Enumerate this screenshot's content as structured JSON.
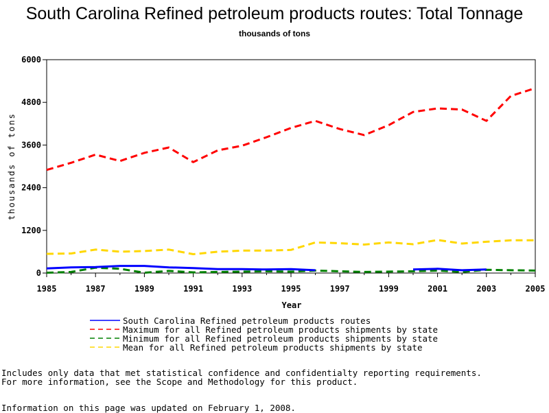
{
  "page": {
    "title": "South Carolina Refined petroleum products routes: Total Tonnage",
    "subtitle": "thousands of tons"
  },
  "notes": {
    "line1": "Includes only data that met statistical confidence and confidentialty reporting requirements.",
    "line2": "For more information, see the Scope and Methodology for this product.",
    "updated": "Information on this page was updated on February 1, 2008."
  },
  "chart_data": {
    "type": "line",
    "title": "South Carolina Refined petroleum products routes: Total Tonnage",
    "subtitle": "thousands of tons",
    "xlabel": "Year",
    "ylabel": "thousands of tons",
    "xlim": [
      1985,
      2005
    ],
    "ylim": [
      0,
      6000
    ],
    "x_ticks": [
      "1985",
      "1987",
      "1989",
      "1991",
      "1993",
      "1995",
      "1997",
      "1999",
      "2001",
      "2003",
      "2005"
    ],
    "y_ticks": [
      "0",
      "1200",
      "2400",
      "3600",
      "4800",
      "6000"
    ],
    "grid": false,
    "legend_position": "bottom",
    "x": [
      1985,
      1986,
      1987,
      1988,
      1989,
      1990,
      1991,
      1992,
      1993,
      1994,
      1995,
      1996,
      1997,
      1998,
      1999,
      2000,
      2001,
      2002,
      2003,
      2004,
      2005
    ],
    "series": [
      {
        "name": "South Carolina Refined petroleum products routes",
        "color": "#0000ff",
        "style": "solid",
        "values": [
          130,
          160,
          170,
          200,
          200,
          160,
          140,
          110,
          110,
          100,
          110,
          80,
          null,
          null,
          null,
          100,
          120,
          80,
          100,
          null,
          null
        ]
      },
      {
        "name": "Maximum for all Refined petroleum products shipments by state",
        "color": "#ff0000",
        "style": "dashed",
        "values": [
          2900,
          3100,
          3330,
          3150,
          3380,
          3530,
          3120,
          3450,
          3580,
          3820,
          4080,
          4280,
          4050,
          3880,
          4160,
          4530,
          4630,
          4600,
          4280,
          4980,
          5200
        ]
      },
      {
        "name": "Minimum for all Refined petroleum products shipments by state",
        "color": "#008000",
        "style": "dashed",
        "values": [
          10,
          30,
          150,
          120,
          10,
          60,
          20,
          30,
          40,
          50,
          40,
          70,
          50,
          30,
          40,
          50,
          70,
          30,
          90,
          80,
          70
        ]
      },
      {
        "name": "Mean for all Refined petroleum products shipments by state",
        "color": "#ffd700",
        "style": "dashed",
        "values": [
          540,
          550,
          660,
          600,
          620,
          660,
          530,
          600,
          630,
          630,
          650,
          860,
          840,
          800,
          860,
          810,
          930,
          830,
          880,
          920,
          920
        ]
      }
    ]
  }
}
